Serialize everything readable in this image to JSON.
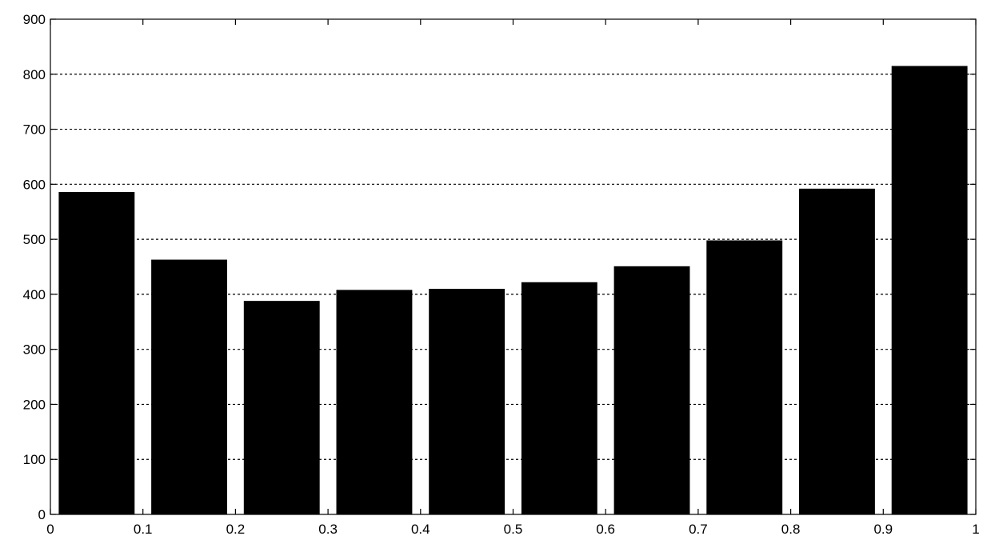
{
  "chart_data": {
    "type": "bar",
    "title": "",
    "xlabel": "",
    "ylabel": "",
    "bin_edges": [
      0,
      0.1,
      0.2,
      0.3,
      0.4,
      0.5,
      0.6,
      0.7,
      0.8,
      0.9,
      1
    ],
    "values": [
      586,
      463,
      388,
      408,
      410,
      422,
      451,
      498,
      592,
      815
    ],
    "xlim": [
      0,
      1
    ],
    "ylim": [
      0,
      900
    ],
    "xticks": [
      0,
      0.1,
      0.2,
      0.3,
      0.4,
      0.5,
      0.6,
      0.7,
      0.8,
      0.9,
      1
    ],
    "xtick_labels": [
      "0",
      "0.1",
      "0.2",
      "0.3",
      "0.4",
      "0.5",
      "0.6",
      "0.7",
      "0.8",
      "0.9",
      "1"
    ],
    "yticks": [
      0,
      100,
      200,
      300,
      400,
      500,
      600,
      700,
      800,
      900
    ],
    "ytick_labels": [
      "0",
      "100",
      "200",
      "300",
      "400",
      "500",
      "600",
      "700",
      "800",
      "900"
    ],
    "grid": "horizontal-dashed",
    "bar_color": "#000000",
    "legend": "none"
  }
}
